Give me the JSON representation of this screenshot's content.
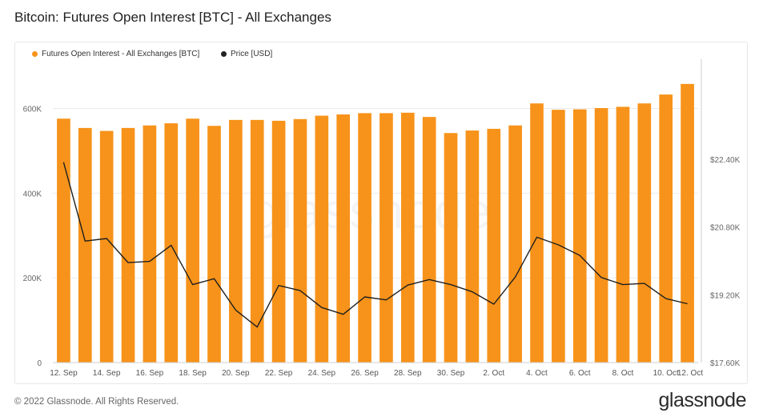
{
  "page": {
    "title": "Bitcoin: Futures Open Interest [BTC] - All Exchanges",
    "copyright": "© 2022 Glassnode. All Rights Reserved.",
    "logo": "glassnode",
    "watermark": "glassnode"
  },
  "colors": {
    "bar": "#f7931a",
    "line": "#1f1f1f",
    "grid": "#ebebeb"
  },
  "chart_data": {
    "type": "bar",
    "title": "Bitcoin: Futures Open Interest [BTC] - All Exchanges",
    "legend_placement": "top-left",
    "grid": true,
    "x_tick_labels": [
      "12. Sep",
      "14. Sep",
      "16. Sep",
      "18. Sep",
      "20. Sep",
      "22. Sep",
      "24. Sep",
      "26. Sep",
      "28. Sep",
      "30. Sep",
      "2. Oct",
      "4. Oct",
      "6. Oct",
      "8. Oct",
      "10. Oct",
      "12. Oct"
    ],
    "categories": [
      "12. Sep",
      "13. Sep",
      "14. Sep",
      "15. Sep",
      "16. Sep",
      "17. Sep",
      "18. Sep",
      "19. Sep",
      "20. Sep",
      "21. Sep",
      "22. Sep",
      "23. Sep",
      "24. Sep",
      "25. Sep",
      "26. Sep",
      "27. Sep",
      "28. Sep",
      "29. Sep",
      "30. Sep",
      "1. Oct",
      "2. Oct",
      "3. Oct",
      "4. Oct",
      "5. Oct",
      "6. Oct",
      "7. Oct",
      "8. Oct",
      "9. Oct",
      "10. Oct",
      "11. Oct"
    ],
    "y_left": {
      "ticks": [
        "0",
        "200K",
        "400K",
        "600K"
      ],
      "tick_values": [
        0,
        200000,
        400000,
        600000
      ],
      "range": [
        0,
        705000
      ]
    },
    "y_right": {
      "ticks": [
        "$17.60K",
        "$19.20K",
        "$20.80K",
        "$22.40K"
      ],
      "tick_values": [
        17600,
        19200,
        20800,
        22400
      ],
      "range": [
        17600,
        24650
      ]
    },
    "series": [
      {
        "name": "Futures Open Interest - All Exchanges [BTC]",
        "type": "bar",
        "axis": "left",
        "values": [
          576000,
          554000,
          547000,
          554000,
          560000,
          565000,
          576000,
          559000,
          573000,
          573000,
          571000,
          575000,
          583000,
          586000,
          589000,
          589000,
          590000,
          580000,
          542000,
          548000,
          552000,
          560000,
          612000,
          597000,
          598000,
          601000,
          604000,
          612000,
          633000,
          658000
        ]
      },
      {
        "name": "Price [USD]",
        "type": "line",
        "axis": "right",
        "values": [
          22330,
          20470,
          20530,
          19960,
          19990,
          20370,
          19440,
          19580,
          18840,
          18440,
          19420,
          19300,
          18900,
          18740,
          19150,
          19080,
          19430,
          19560,
          19440,
          19270,
          18980,
          19620,
          20560,
          20380,
          20130,
          19610,
          19440,
          19470,
          19110,
          18990
        ]
      }
    ]
  }
}
